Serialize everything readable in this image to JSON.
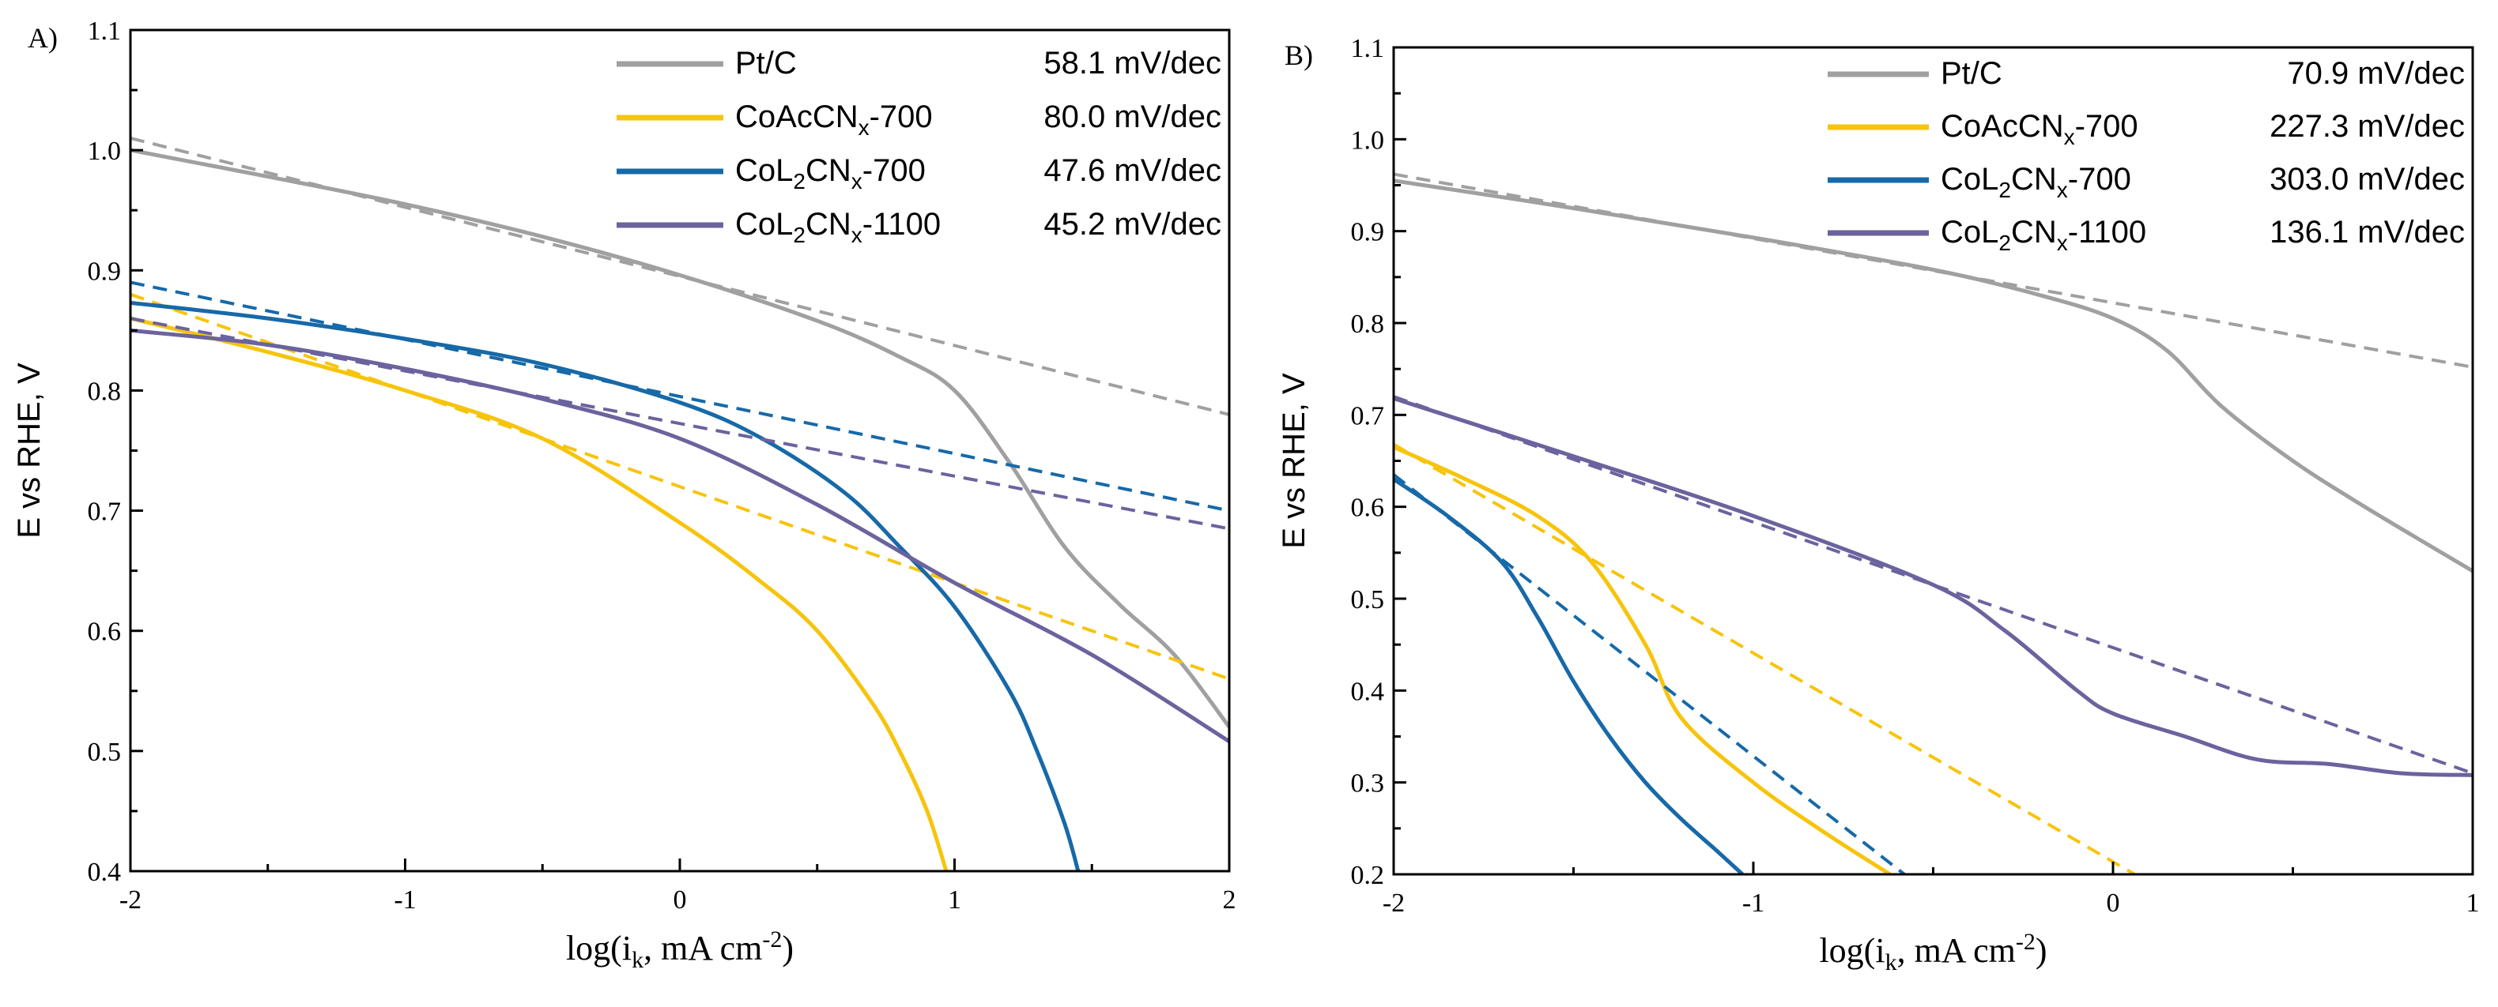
{
  "chart_data": [
    {
      "panel_label": "A)",
      "type": "line",
      "xlabel": "log(i_k, mA cm^-2)",
      "xlabel_parts": {
        "before": "log(i",
        "sub": "k",
        "middle": ", mA cm",
        "sup": "-2",
        "after": ")"
      },
      "ylabel": "E vs RHE, V",
      "xlim": [
        -2,
        2
      ],
      "ylim": [
        0.4,
        1.1
      ],
      "xticks": [
        -2,
        -1,
        0,
        1,
        2
      ],
      "xtick_labels": [
        "-2",
        "-1",
        "0",
        "1",
        "2"
      ],
      "yticks": [
        0.4,
        0.5,
        0.6,
        0.7,
        0.8,
        0.9,
        1.0,
        1.1
      ],
      "ytick_labels": [
        "0.4",
        "0.5",
        "0.6",
        "0.7",
        "0.8",
        "0.9",
        "1.0",
        "1.1"
      ],
      "legend_position": "top-right",
      "series": [
        {
          "name": "Pt/C",
          "label_parts": [
            "Pt/C"
          ],
          "slope_label": "58.1 mV/dec",
          "color": "#a0a0a0",
          "x": [
            -2,
            -1.5,
            -1,
            -0.5,
            0,
            0.5,
            0.8,
            1.0,
            1.2,
            1.4,
            1.6,
            1.8,
            2.0
          ],
          "y": [
            1.0,
            0.978,
            0.955,
            0.928,
            0.896,
            0.858,
            0.828,
            0.8,
            0.74,
            0.67,
            0.622,
            0.58,
            0.52
          ],
          "tafel_fit": {
            "x": [
              -2,
              2
            ],
            "y": [
              1.01,
              0.78
            ]
          }
        },
        {
          "name": "CoAcCNx-700",
          "label_parts": [
            "CoAcCN",
            "x",
            "-700"
          ],
          "slope_label": "80.0 mV/dec",
          "color": "#f7c40d",
          "x": [
            -2,
            -1.5,
            -1,
            -0.5,
            0,
            0.3,
            0.5,
            0.7,
            0.8,
            0.9,
            0.97
          ],
          "y": [
            0.86,
            0.832,
            0.8,
            0.76,
            0.69,
            0.64,
            0.6,
            0.54,
            0.5,
            0.45,
            0.4
          ],
          "tafel_fit": {
            "x": [
              -2,
              2
            ],
            "y": [
              0.88,
              0.56
            ]
          }
        },
        {
          "name": "CoL2CNx-700",
          "label_parts": [
            "CoL",
            "2",
            "CN",
            "x",
            "-700"
          ],
          "slope_label": "47.6 mV/dec",
          "color": "#1769a8",
          "x": [
            -2,
            -1.5,
            -1,
            -0.5,
            0,
            0.3,
            0.6,
            0.8,
            1.0,
            1.2,
            1.3,
            1.4,
            1.45
          ],
          "y": [
            0.873,
            0.86,
            0.843,
            0.822,
            0.79,
            0.76,
            0.715,
            0.67,
            0.62,
            0.55,
            0.5,
            0.44,
            0.4
          ],
          "tafel_fit": {
            "x": [
              -2,
              2
            ],
            "y": [
              0.89,
              0.7
            ]
          }
        },
        {
          "name": "CoL2CNx-1100",
          "label_parts": [
            "CoL",
            "2",
            "CN",
            "x",
            "-1100"
          ],
          "slope_label": "45.2 mV/dec",
          "color": "#6b639e",
          "x": [
            -2,
            -1.5,
            -1,
            -0.5,
            0,
            0.5,
            1.0,
            1.5,
            2.0
          ],
          "y": [
            0.85,
            0.838,
            0.818,
            0.793,
            0.76,
            0.705,
            0.64,
            0.58,
            0.508
          ],
          "tafel_fit": {
            "x": [
              -2,
              2
            ],
            "y": [
              0.86,
              0.685
            ]
          }
        }
      ]
    },
    {
      "panel_label": "B)",
      "type": "line",
      "xlabel": "log(i_k, mA cm^-2)",
      "xlabel_parts": {
        "before": "log(i",
        "sub": "k",
        "middle": ", mA cm",
        "sup": "-2",
        "after": ")"
      },
      "ylabel": "E vs RHE, V",
      "xlim": [
        -2,
        1
      ],
      "ylim": [
        0.2,
        1.1
      ],
      "xticks": [
        -2,
        -1,
        0,
        1
      ],
      "xtick_labels": [
        "-2",
        "-1",
        "0",
        "1"
      ],
      "yticks": [
        0.2,
        0.3,
        0.4,
        0.5,
        0.6,
        0.7,
        0.8,
        0.9,
        1.0,
        1.1
      ],
      "ytick_labels": [
        "0.2",
        "0.3",
        "0.4",
        "0.5",
        "0.6",
        "0.7",
        "0.8",
        "0.9",
        "1.0",
        "1.1"
      ],
      "legend_position": "top-right",
      "series": [
        {
          "name": "Pt/C",
          "label_parts": [
            "Pt/C"
          ],
          "slope_label": "70.9 mV/dec",
          "color": "#a0a0a0",
          "x": [
            -2,
            -1.5,
            -1,
            -0.5,
            -0.2,
            0,
            0.15,
            0.3,
            0.5,
            0.7,
            1.0
          ],
          "y": [
            0.955,
            0.925,
            0.893,
            0.858,
            0.83,
            0.805,
            0.77,
            0.71,
            0.65,
            0.6,
            0.53
          ],
          "tafel_fit": {
            "x": [
              -2,
              1
            ],
            "y": [
              0.962,
              0.752
            ]
          }
        },
        {
          "name": "CoAcCNx-700",
          "label_parts": [
            "CoAcCN",
            "x",
            "-700"
          ],
          "slope_label": "227.3 mV/dec",
          "color": "#f7c40d",
          "x": [
            -2,
            -1.8,
            -1.6,
            -1.45,
            -1.3,
            -1.2,
            -1.0,
            -0.8,
            -0.62
          ],
          "y": [
            0.665,
            0.63,
            0.59,
            0.54,
            0.45,
            0.37,
            0.3,
            0.245,
            0.2
          ],
          "tafel_fit": {
            "x": [
              -2,
              0.06
            ],
            "y": [
              0.668,
              0.2
            ]
          }
        },
        {
          "name": "CoL2CNx-700",
          "label_parts": [
            "CoL",
            "2",
            "CN",
            "x",
            "-700"
          ],
          "slope_label": "303.0 mV/dec",
          "color": "#1769a8",
          "x": [
            -2,
            -1.85,
            -1.7,
            -1.6,
            -1.5,
            -1.4,
            -1.3,
            -1.2,
            -1.1,
            -1.03
          ],
          "y": [
            0.63,
            0.59,
            0.54,
            0.48,
            0.41,
            0.35,
            0.3,
            0.26,
            0.225,
            0.2
          ],
          "tafel_fit": {
            "x": [
              -2,
              -0.58
            ],
            "y": [
              0.635,
              0.2
            ]
          }
        },
        {
          "name": "CoL2CNx-1100",
          "label_parts": [
            "CoL",
            "2",
            "CN",
            "x",
            "-1100"
          ],
          "slope_label": "136.1 mV/dec",
          "color": "#6b639e",
          "x": [
            -2,
            -1.5,
            -1,
            -0.5,
            -0.3,
            -0.1,
            0,
            0.2,
            0.4,
            0.6,
            0.8,
            1.0
          ],
          "y": [
            0.718,
            0.655,
            0.59,
            0.515,
            0.465,
            0.4,
            0.375,
            0.35,
            0.325,
            0.32,
            0.31,
            0.308
          ],
          "tafel_fit": {
            "x": [
              -2,
              1
            ],
            "y": [
              0.72,
              0.31
            ]
          }
        }
      ]
    }
  ]
}
